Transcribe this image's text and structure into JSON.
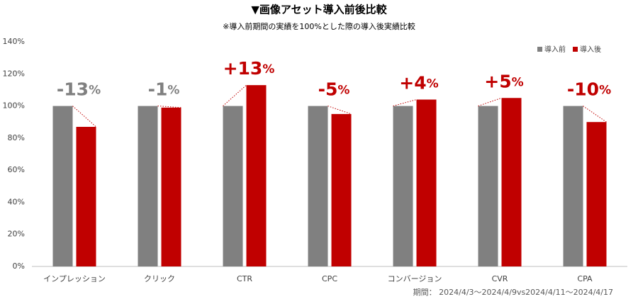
{
  "chart_data": {
    "type": "bar",
    "title": "▼画像アセット導入前後比較",
    "subtitle": "※導入前期間の実績を100%とした際の導入後実績比較",
    "footnote": "期間： 2024/4/3～2024/4/9vs2024/4/11～2024/4/17",
    "categories": [
      "インプレッション",
      "クリック",
      "CTR",
      "CPC",
      "コンバージョン",
      "CVR",
      "CPA"
    ],
    "series": [
      {
        "name": "導入前",
        "color": "#808080",
        "values": [
          100,
          100,
          100,
          100,
          100,
          100,
          100
        ]
      },
      {
        "name": "導入後",
        "color": "#c00000",
        "values": [
          87,
          99,
          113,
          95,
          104,
          105,
          90
        ]
      }
    ],
    "annotations": [
      "-13%",
      "-1%",
      "+13%",
      "-5%",
      "+4%",
      "+5%",
      "-10%"
    ],
    "annotation_colors": [
      "#808080",
      "#808080",
      "#c00000",
      "#c00000",
      "#c00000",
      "#c00000",
      "#c00000"
    ],
    "ylim": [
      0,
      140
    ],
    "yticks": [
      {
        "value": 0,
        "label": "0%"
      },
      {
        "value": 20,
        "label": "20%"
      },
      {
        "value": 40,
        "label": "40%"
      },
      {
        "value": 60,
        "label": "60%"
      },
      {
        "value": 80,
        "label": "80%"
      },
      {
        "value": 100,
        "label": "100%"
      },
      {
        "value": 120,
        "label": "120%"
      },
      {
        "value": 140,
        "label": "140%"
      }
    ],
    "grid": false,
    "legend": "top-right"
  }
}
